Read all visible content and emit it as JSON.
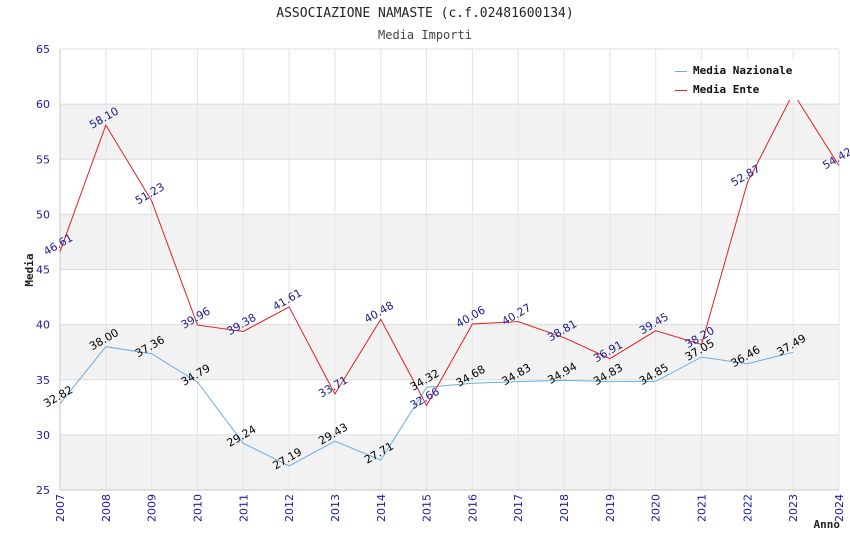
{
  "header": {
    "title": "ASSOCIAZIONE NAMASTE (c.f.02481600134)",
    "subtitle": "Media Importi"
  },
  "chart_data": {
    "type": "line",
    "title": "ASSOCIAZIONE NAMASTE (c.f.02481600134)",
    "subtitle": "Media Importi",
    "xlabel": "Anno",
    "ylabel": "Media",
    "ylim": [
      25,
      65
    ],
    "yticks": [
      25,
      30,
      35,
      40,
      45,
      50,
      55,
      60,
      65
    ],
    "x": [
      2007,
      2008,
      2009,
      2010,
      2011,
      2012,
      2013,
      2014,
      2015,
      2016,
      2017,
      2018,
      2019,
      2020,
      2021,
      2022,
      2023,
      2024
    ],
    "legend_position": "top-right",
    "grid": true,
    "series": [
      {
        "name": "Media Nazionale",
        "color": "#6aaee0",
        "values": [
          32.82,
          38.0,
          37.36,
          34.79,
          29.24,
          27.19,
          29.43,
          27.71,
          34.32,
          34.68,
          34.83,
          34.94,
          34.83,
          34.85,
          37.05,
          36.46,
          37.49,
          null
        ],
        "labels": [
          "32.82",
          "38.00",
          "37.36",
          "34.79",
          "29.24",
          "27.19",
          "29.43",
          "27.71",
          "34.32",
          "34.68",
          "34.83",
          "34.94",
          "34.83",
          "34.85",
          "37.05",
          "36.46",
          "37.49",
          null
        ]
      },
      {
        "name": "Media Ente",
        "color": "#e02020",
        "values": [
          46.61,
          58.1,
          51.23,
          39.96,
          39.38,
          41.61,
          33.71,
          40.48,
          32.66,
          40.06,
          40.27,
          38.81,
          36.91,
          39.45,
          38.2,
          52.87,
          61.0,
          54.42
        ],
        "labels": [
          "46.61",
          "58.10",
          "51.23",
          "39.96",
          "39.38",
          "41.61",
          "33.71",
          "40.48",
          "32.66",
          "40.06",
          "40.27",
          "38.81",
          "36.91",
          "39.45",
          "38.20",
          "52.87",
          null,
          "54.42"
        ]
      }
    ]
  }
}
